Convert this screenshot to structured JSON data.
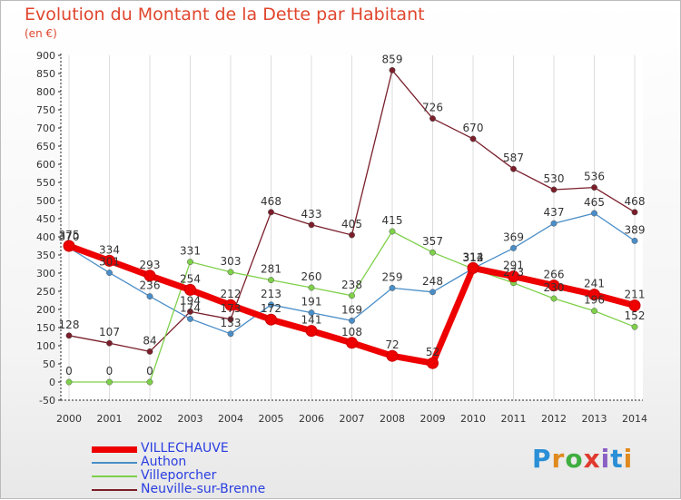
{
  "title": "Evolution du Montant de la Dette par Habitant",
  "subtitle": "(en €)",
  "logo_text": "Proxiti",
  "chart_data": {
    "type": "line",
    "title": "Evolution du Montant de la Dette par Habitant",
    "subtitle": "(en €)",
    "xlabel": "",
    "ylabel": "",
    "x": [
      "2000",
      "2001",
      "2002",
      "2003",
      "2004",
      "2005",
      "2006",
      "2007",
      "2008",
      "2009",
      "2010",
      "2011",
      "2012",
      "2013",
      "2014"
    ],
    "ylim": [
      -50,
      900
    ],
    "yticks": [
      -50,
      0,
      50,
      100,
      150,
      200,
      250,
      300,
      350,
      400,
      450,
      500,
      550,
      600,
      650,
      700,
      750,
      800,
      850,
      900
    ],
    "grid": "vertical",
    "legend_position": "bottom-left",
    "series": [
      {
        "name": "VILLECHAUVE",
        "color": "#ee0000",
        "values": [
          375,
          334,
          293,
          254,
          212,
          172,
          141,
          108,
          72,
          52,
          314,
          291,
          266,
          241,
          211
        ]
      },
      {
        "name": "Authon",
        "color": "#4a8ec8",
        "values": [
          370,
          301,
          236,
          174,
          133,
          213,
          191,
          169,
          259,
          248,
          313,
          369,
          437,
          465,
          389
        ]
      },
      {
        "name": "Villeporcher",
        "color": "#7fd04a",
        "values": [
          0,
          0,
          0,
          331,
          303,
          281,
          260,
          238,
          415,
          357,
          312,
          273,
          230,
          196,
          152
        ]
      },
      {
        "name": "Neuville-sur-Brenne",
        "color": "#7a1e2a",
        "values": [
          128,
          107,
          84,
          194,
          173,
          468,
          433,
          405,
          859,
          726,
          670,
          587,
          530,
          536,
          468
        ]
      }
    ]
  }
}
